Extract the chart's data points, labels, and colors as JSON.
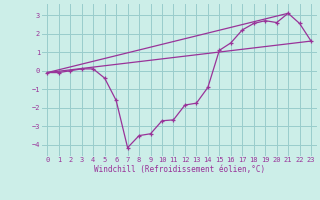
{
  "xlabel": "Windchill (Refroidissement éolien,°C)",
  "xlim": [
    -0.5,
    23.5
  ],
  "ylim": [
    -4.6,
    3.6
  ],
  "yticks": [
    -4,
    -3,
    -2,
    -1,
    0,
    1,
    2,
    3
  ],
  "xticks": [
    0,
    1,
    2,
    3,
    4,
    5,
    6,
    7,
    8,
    9,
    10,
    11,
    12,
    13,
    14,
    15,
    16,
    17,
    18,
    19,
    20,
    21,
    22,
    23
  ],
  "background_color": "#cceee8",
  "line_color": "#993399",
  "grid_color": "#99cccc",
  "series_main": {
    "x": [
      0,
      1,
      2,
      3,
      4,
      5,
      6,
      7,
      8,
      9,
      10,
      11,
      12,
      13,
      14,
      15,
      16,
      17,
      18,
      19,
      20,
      21,
      22,
      23
    ],
    "y": [
      -0.1,
      -0.1,
      0.0,
      0.1,
      0.1,
      -0.4,
      -1.6,
      -4.15,
      -3.5,
      -3.4,
      -2.7,
      -2.65,
      -1.85,
      -1.75,
      -0.9,
      1.1,
      1.5,
      2.2,
      2.55,
      2.7,
      2.6,
      3.1,
      2.55,
      1.6
    ]
  },
  "series_line1": {
    "x": [
      0,
      21
    ],
    "y": [
      -0.1,
      3.1
    ]
  },
  "series_line2": {
    "x": [
      0,
      23
    ],
    "y": [
      -0.1,
      1.6
    ]
  }
}
